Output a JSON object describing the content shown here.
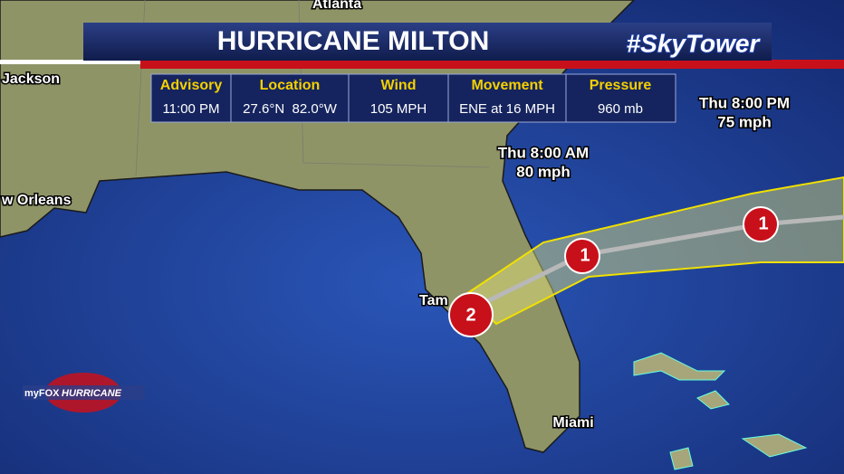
{
  "header": {
    "title": "HURRICANE MILTON",
    "brand": "#SkyTower"
  },
  "info_table": {
    "columns": [
      "Advisory",
      "Location",
      "Wind",
      "Movement",
      "Pressure"
    ],
    "values": [
      "11:00 PM",
      "27.6°N  82.0°W",
      "105 MPH",
      "ENE at 16 MPH",
      "960 mb"
    ]
  },
  "current": {
    "category": "2"
  },
  "forecast_points": [
    {
      "time": "Thu 8:00 AM",
      "wind": "80 mph",
      "category": "1"
    },
    {
      "time": "Thu 8:00 PM",
      "wind": "75 mph",
      "category": "1"
    }
  ],
  "cities": [
    "Atlanta",
    "Jackson",
    "w Orleans",
    "Tam",
    "Miami"
  ],
  "logo": {
    "brand": "myFOX",
    "name": "HURRICANE"
  }
}
